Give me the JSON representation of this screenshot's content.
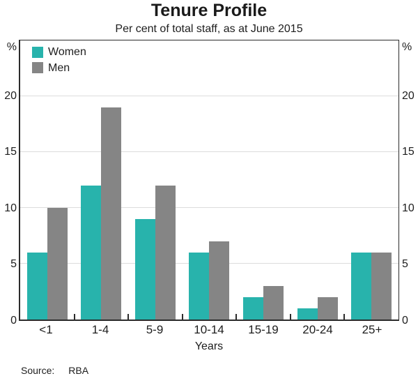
{
  "source": {
    "label": "Source:",
    "value": "RBA"
  },
  "colors": {
    "women": "#28b3ac",
    "men": "#858585",
    "gridline": "#dcdcdc",
    "axis": "#2b2b2b"
  },
  "chart_data": {
    "type": "bar",
    "title": "Tenure Profile",
    "subtitle": "Per cent of total staff, as at June 2015",
    "categories": [
      "<1",
      "1-4",
      "5-9",
      "10-14",
      "15-19",
      "20-24",
      "25+"
    ],
    "series": [
      {
        "name": "Women",
        "color": "#28b3ac",
        "values": [
          6,
          12,
          9,
          6,
          2,
          1,
          6
        ]
      },
      {
        "name": "Men",
        "color": "#858585",
        "values": [
          10,
          19,
          12,
          7,
          3,
          2,
          6
        ]
      }
    ],
    "xlabel": "Years",
    "y_unit": "%",
    "ylim": [
      0,
      25
    ],
    "yticks": [
      0,
      5,
      10,
      15,
      20
    ],
    "grid": true,
    "legend_position": "top-left-inside"
  }
}
